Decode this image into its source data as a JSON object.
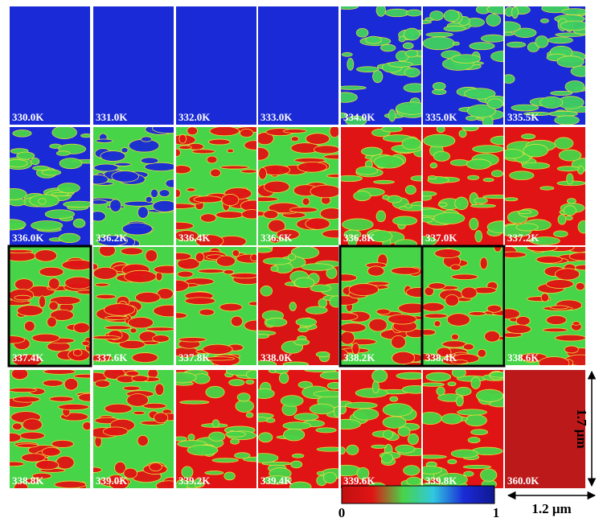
{
  "panels": [
    {
      "label": "330.0K",
      "colors": [
        "#1a2ad6",
        "#1a2ad6"
      ]
    },
    {
      "label": "331.0K",
      "colors": [
        "#1a2ad6",
        "#1a2ad6"
      ]
    },
    {
      "label": "332.0K",
      "colors": [
        "#1a2ad6",
        "#1a2ad6"
      ]
    },
    {
      "label": "333.0K",
      "colors": [
        "#1a2ad6",
        "#1a2ad6"
      ]
    },
    {
      "label": "334.0K",
      "colors": [
        "#1a2ad6",
        "#40d060"
      ]
    },
    {
      "label": "335.0K",
      "colors": [
        "#1a2ad6",
        "#40d060"
      ]
    },
    {
      "label": "335.5K",
      "colors": [
        "#1a2ad6",
        "#40d060"
      ]
    },
    {
      "label": "336.0K",
      "colors": [
        "#1a2ad6",
        "#48d448"
      ]
    },
    {
      "label": "336.2K",
      "colors": [
        "#48d448",
        "#1a2ad6"
      ]
    },
    {
      "label": "336.4K",
      "colors": [
        "#48d448",
        "#e01414"
      ]
    },
    {
      "label": "336.6K",
      "colors": [
        "#48d448",
        "#e01414"
      ]
    },
    {
      "label": "336.8K",
      "colors": [
        "#e01414",
        "#48d448"
      ]
    },
    {
      "label": "337.0K",
      "colors": [
        "#e01414",
        "#48d448"
      ]
    },
    {
      "label": "337.2K",
      "colors": [
        "#e01414",
        "#48d448"
      ]
    },
    {
      "label": "337.4K",
      "colors": [
        "#48d448",
        "#e01414"
      ],
      "outlined": true
    },
    {
      "label": "337.6K",
      "colors": [
        "#48d448",
        "#e01414"
      ]
    },
    {
      "label": "337.8K",
      "colors": [
        "#48d448",
        "#e01414"
      ]
    },
    {
      "label": "338.0K",
      "colors": [
        "#d81414",
        "#48d448"
      ]
    },
    {
      "label": "338.2K",
      "colors": [
        "#48d448",
        "#e01414"
      ],
      "outlined": true
    },
    {
      "label": "338.4K",
      "colors": [
        "#48d448",
        "#e01414"
      ],
      "outlined": true
    },
    {
      "label": "338.6K",
      "colors": [
        "#48d448",
        "#e01414"
      ]
    },
    {
      "label": "338.8K",
      "colors": [
        "#48d448",
        "#e01414"
      ]
    },
    {
      "label": "339.0K",
      "colors": [
        "#48d448",
        "#e01414"
      ]
    },
    {
      "label": "339.2K",
      "colors": [
        "#e01414",
        "#48d448"
      ]
    },
    {
      "label": "339.4K",
      "colors": [
        "#e01414",
        "#48d448"
      ]
    },
    {
      "label": "339.6K",
      "colors": [
        "#e01414",
        "#48d448"
      ]
    },
    {
      "label": "339.8K",
      "colors": [
        "#e01414",
        "#48d448"
      ]
    },
    {
      "label": "360.0K",
      "colors": [
        "#bc1a1a",
        "#bc1a1a"
      ]
    }
  ],
  "colorbar": {
    "colors": [
      "#c01010",
      "#e01414",
      "#48d448",
      "#30c8e0",
      "#1a2ad6",
      "#101890"
    ],
    "min_label": "0",
    "max_label": "1"
  },
  "scale_x": "1.2 μm",
  "scale_y": "1.7 μm"
}
